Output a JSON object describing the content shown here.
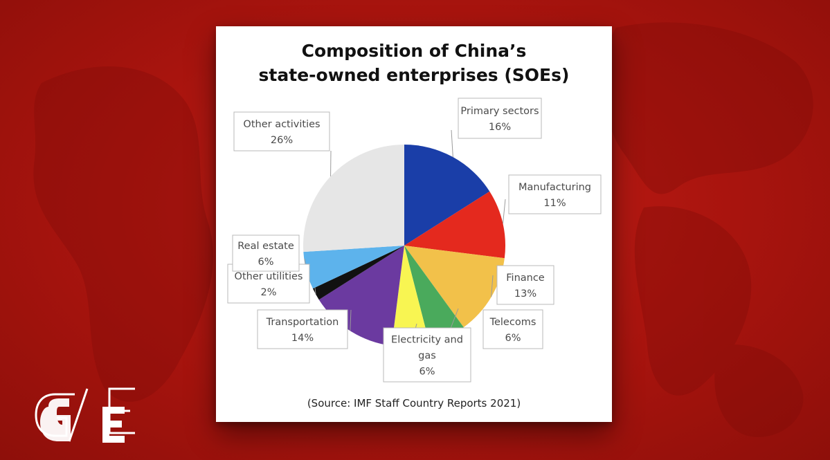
{
  "chart_data": {
    "type": "pie",
    "title_lines": [
      "Composition of China’s",
      "state-owned enterprises (SOEs)"
    ],
    "source": "(Source: IMF Staff Country Reports 2021)",
    "slices": [
      {
        "label": "Primary sectors",
        "value_label": "16%",
        "value": 16,
        "color": "#1a3ea8"
      },
      {
        "label": "Manufacturing",
        "value_label": "11%",
        "value": 11,
        "color": "#e4291e"
      },
      {
        "label": "Finance",
        "value_label": "13%",
        "value": 13,
        "color": "#f2c14a"
      },
      {
        "label": "Telecoms",
        "value_label": "6%",
        "value": 6,
        "color": "#4aaa5c"
      },
      {
        "label": "Electricity and gas",
        "value_label": "6%",
        "value": 6,
        "color": "#f8f552"
      },
      {
        "label": "Transportation",
        "value_label": "14%",
        "value": 14,
        "color": "#6b3aa0"
      },
      {
        "label": "Other utilities",
        "value_label": "2%",
        "value": 2,
        "color": "#111111"
      },
      {
        "label": "Real estate",
        "value_label": "6%",
        "value": 6,
        "color": "#5db3ec"
      },
      {
        "label": "Other activities",
        "value_label": "26%",
        "value": 26,
        "color": "#e6e6e6"
      }
    ]
  },
  "logo": {
    "text": "G/E"
  }
}
